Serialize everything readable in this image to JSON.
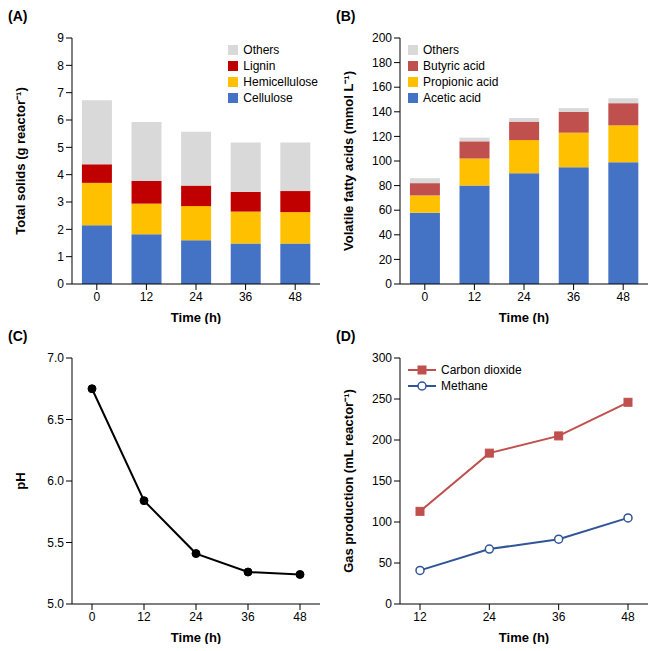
{
  "chart_data": [
    {
      "title": "(A)",
      "type": "bar",
      "stacked": true,
      "x_label": "Time (h)",
      "y_label": "Total solids (g reactor⁻¹)",
      "categories": [
        "0",
        "12",
        "24",
        "36",
        "48"
      ],
      "series": [
        {
          "name": "Cellulose",
          "color": "#4472c4",
          "values": [
            2.15,
            1.82,
            1.6,
            1.48,
            1.48
          ]
        },
        {
          "name": "Hemicellulose",
          "color": "#ffc000",
          "values": [
            1.55,
            1.12,
            1.25,
            1.17,
            1.15
          ]
        },
        {
          "name": "Lignin",
          "color": "#c00000",
          "values": [
            0.68,
            0.83,
            0.75,
            0.72,
            0.77
          ]
        },
        {
          "name": "Others",
          "color": "#d9d9d9",
          "values": [
            2.34,
            2.16,
            1.97,
            1.81,
            1.78
          ]
        }
      ],
      "ylim": [
        0,
        9
      ],
      "yticks": [
        0,
        1,
        2,
        3,
        4,
        5,
        6,
        7,
        8,
        9
      ],
      "legend": "upper right"
    },
    {
      "title": "(B)",
      "type": "bar",
      "stacked": true,
      "x_label": "Time (h)",
      "y_label": "Volatile fatty acids (mmol L⁻¹)",
      "categories": [
        "0",
        "12",
        "24",
        "36",
        "48"
      ],
      "series": [
        {
          "name": "Acetic acid",
          "color": "#4472c4",
          "values": [
            58,
            80,
            90,
            95,
            99
          ]
        },
        {
          "name": "Propionic acid",
          "color": "#ffc000",
          "values": [
            14,
            22,
            27,
            28,
            30
          ]
        },
        {
          "name": "Butyric acid",
          "color": "#c0504d",
          "values": [
            10,
            14,
            15,
            17,
            18
          ]
        },
        {
          "name": "Others",
          "color": "#d9d9d9",
          "values": [
            4,
            3,
            3,
            3,
            4
          ]
        }
      ],
      "ylim": [
        0,
        200
      ],
      "yticks": [
        0,
        20,
        40,
        60,
        80,
        100,
        120,
        140,
        160,
        180,
        200
      ],
      "legend": "upper left"
    },
    {
      "title": "(C)",
      "type": "line",
      "x_label": "Time (h)",
      "y_label": "pH",
      "categories": [
        "0",
        "12",
        "24",
        "36",
        "48"
      ],
      "series": [
        {
          "name": "pH",
          "color": "#000000",
          "marker": "circle",
          "values": [
            6.75,
            5.84,
            5.41,
            5.26,
            5.24
          ]
        }
      ],
      "ylim": [
        5,
        7
      ],
      "yticks": [
        {
          "value": 5,
          "label": "5.0"
        },
        {
          "value": 5.5,
          "label": "5.5"
        },
        {
          "value": 6,
          "label": "6.0"
        },
        {
          "value": 6.5,
          "label": "6.5"
        },
        {
          "value": 7,
          "label": "7.0"
        }
      ]
    },
    {
      "title": "(D)",
      "type": "line",
      "x_label": "Time (h)",
      "y_label": "Gas production (mL reactor⁻¹)",
      "categories": [
        "12",
        "24",
        "36",
        "48"
      ],
      "series": [
        {
          "name": "Carbon dioxide",
          "color": "#c0504d",
          "marker": "square",
          "values": [
            113,
            184,
            205,
            246
          ]
        },
        {
          "name": "Methane",
          "color": "#2f5597",
          "marker": "open_circle",
          "values": [
            41,
            67,
            79,
            105
          ]
        }
      ],
      "ylim": [
        0,
        300
      ],
      "yticks": [
        0,
        50,
        100,
        150,
        200,
        250,
        300
      ],
      "legend": "upper left"
    }
  ]
}
